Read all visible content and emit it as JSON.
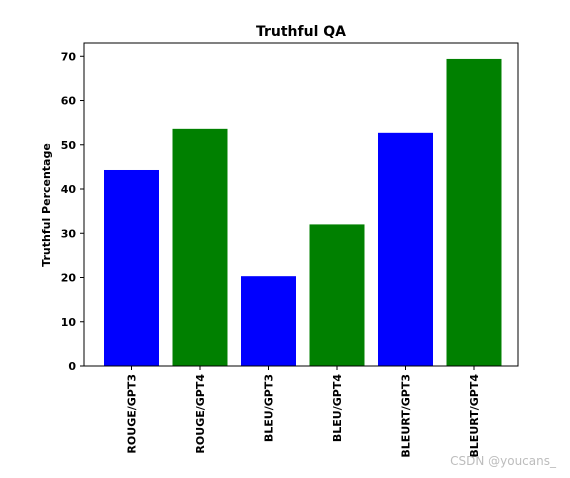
{
  "chart_data": {
    "type": "bar",
    "title": "Truthful QA",
    "ylabel": "Truthful Percentage",
    "xlabel": "",
    "categories": [
      "ROUGE/GPT3",
      "ROUGE/GPT4",
      "BLEU/GPT3",
      "BLEU/GPT4",
      "BLEURT/GPT3",
      "BLEURT/GPT4"
    ],
    "values": [
      44.3,
      53.6,
      20.3,
      32.0,
      52.7,
      69.4
    ],
    "colors": [
      "#0000ff",
      "#008000",
      "#0000ff",
      "#008000",
      "#0000ff",
      "#008000"
    ],
    "ylim": [
      0,
      73.0
    ],
    "yticks": [
      0,
      10,
      20,
      30,
      40,
      50,
      60,
      70
    ],
    "grid": false
  },
  "watermark": "CSDN @youcans_"
}
